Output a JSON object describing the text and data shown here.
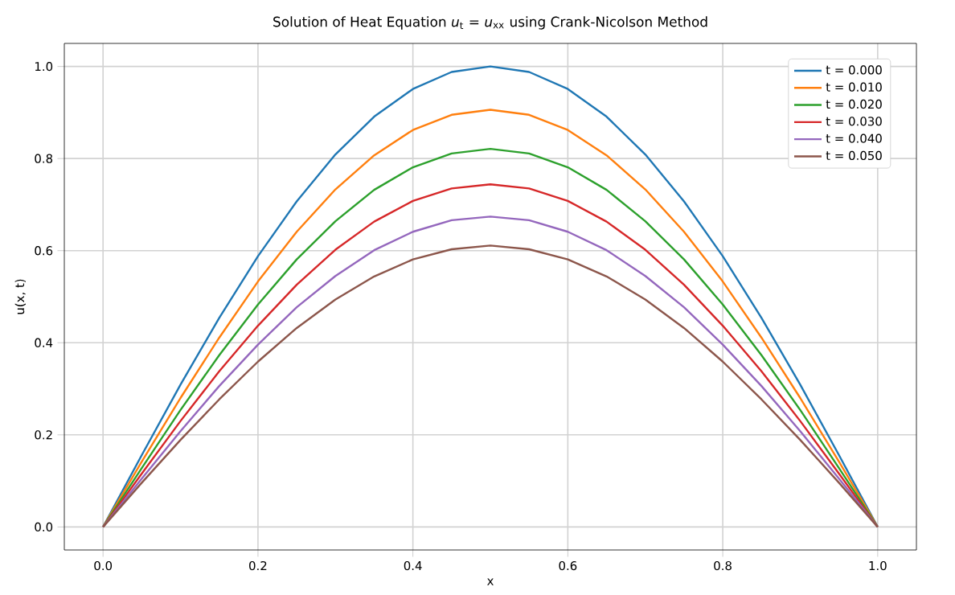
{
  "chart_data": {
    "type": "line",
    "title": "Solution of Heat Equation *u*$_{t}$ = *u*$_{xx}$ using Crank-Nicolson Method",
    "xlabel": "x",
    "ylabel": "u(x, t)",
    "x": [
      0,
      0.05,
      0.1,
      0.15,
      0.2,
      0.25,
      0.3,
      0.35,
      0.4,
      0.45,
      0.5,
      0.55,
      0.6,
      0.65,
      0.7,
      0.75,
      0.8,
      0.85,
      0.9,
      0.95,
      1
    ],
    "series": [
      {
        "name": "t = 0.000",
        "color": "#1f77b4",
        "values": [
          0,
          0.156,
          0.309,
          0.454,
          0.588,
          0.707,
          0.809,
          0.891,
          0.951,
          0.988,
          1,
          0.988,
          0.951,
          0.891,
          0.809,
          0.707,
          0.588,
          0.454,
          0.309,
          0.156,
          0
        ]
      },
      {
        "name": "t = 0.010",
        "color": "#ff7f0e",
        "values": [
          0,
          0.142,
          0.28,
          0.411,
          0.533,
          0.641,
          0.733,
          0.807,
          0.862,
          0.895,
          0.906,
          0.895,
          0.862,
          0.807,
          0.733,
          0.641,
          0.533,
          0.411,
          0.28,
          0.142,
          0
        ]
      },
      {
        "name": "t = 0.020",
        "color": "#2ca02c",
        "values": [
          0,
          0.128,
          0.254,
          0.373,
          0.483,
          0.581,
          0.664,
          0.732,
          0.781,
          0.811,
          0.821,
          0.811,
          0.781,
          0.732,
          0.664,
          0.581,
          0.483,
          0.373,
          0.254,
          0.128,
          0
        ]
      },
      {
        "name": "t = 0.030",
        "color": "#d62728",
        "values": [
          0,
          0.116,
          0.23,
          0.338,
          0.437,
          0.526,
          0.602,
          0.663,
          0.708,
          0.735,
          0.744,
          0.735,
          0.708,
          0.663,
          0.602,
          0.526,
          0.437,
          0.338,
          0.23,
          0.116,
          0
        ]
      },
      {
        "name": "t = 0.040",
        "color": "#9467bd",
        "values": [
          0,
          0.105,
          0.208,
          0.306,
          0.396,
          0.477,
          0.545,
          0.601,
          0.641,
          0.666,
          0.674,
          0.666,
          0.641,
          0.601,
          0.545,
          0.477,
          0.396,
          0.306,
          0.208,
          0.105,
          0
        ]
      },
      {
        "name": "t = 0.050",
        "color": "#8c564b",
        "values": [
          0,
          0.096,
          0.189,
          0.277,
          0.359,
          0.432,
          0.494,
          0.544,
          0.581,
          0.603,
          0.611,
          0.603,
          0.581,
          0.544,
          0.494,
          0.432,
          0.359,
          0.277,
          0.189,
          0.096,
          0
        ]
      }
    ],
    "xlim": [
      -0.05,
      1.05
    ],
    "ylim": [
      -0.05,
      1.05
    ],
    "xticks": [
      {
        "value": 0,
        "label": "0.0"
      },
      {
        "value": 0.2,
        "label": "0.2"
      },
      {
        "value": 0.4,
        "label": "0.4"
      },
      {
        "value": 0.6,
        "label": "0.6"
      },
      {
        "value": 0.8,
        "label": "0.8"
      },
      {
        "value": 1,
        "label": "1.0"
      }
    ],
    "yticks": [
      {
        "value": 0,
        "label": "0.0"
      },
      {
        "value": 0.2,
        "label": "0.2"
      },
      {
        "value": 0.4,
        "label": "0.4"
      },
      {
        "value": 0.6,
        "label": "0.6"
      },
      {
        "value": 0.8,
        "label": "0.8"
      },
      {
        "value": 1,
        "label": "1.0"
      }
    ],
    "grid": true,
    "legend": "top right",
    "marker": "none",
    "line_style": "solid"
  }
}
